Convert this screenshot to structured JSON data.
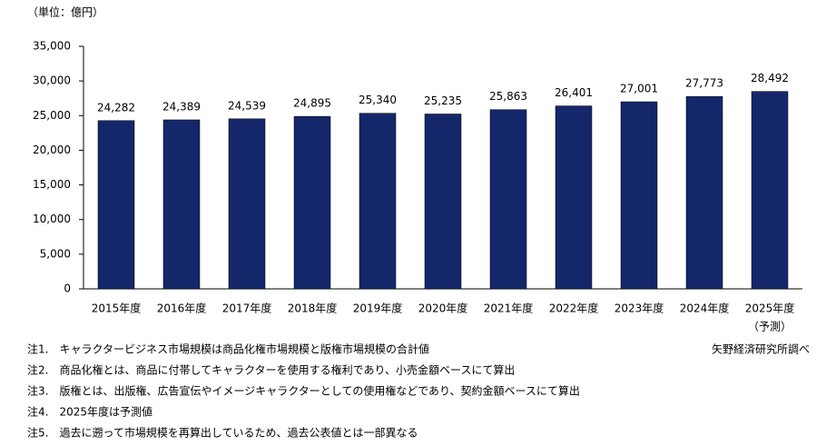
{
  "chart_data": {
    "type": "bar",
    "unit_label": "（単位：億円）",
    "categories": [
      "2015年度",
      "2016年度",
      "2017年度",
      "2018年度",
      "2019年度",
      "2020年度",
      "2021年度",
      "2022年度",
      "2023年度",
      "2024年度",
      "2025年度"
    ],
    "forecast_note": "（予測）",
    "values": [
      24282,
      24389,
      24539,
      24895,
      25340,
      25235,
      25863,
      26401,
      27001,
      27773,
      28492
    ],
    "value_labels": [
      "24,282",
      "24,389",
      "24,539",
      "24,895",
      "25,340",
      "25,235",
      "25,863",
      "26,401",
      "27,001",
      "27,773",
      "28,492"
    ],
    "color": "#15276b",
    "ylim": [
      0,
      35000
    ],
    "yticks": [
      0,
      {
        "value": 5000,
        "label": "5,000"
      },
      {
        "value": 10000,
        "label": "10,000"
      },
      {
        "value": 15000,
        "label": "15,000"
      },
      {
        "value": 20000,
        "label": "20,000"
      },
      {
        "value": 25000,
        "label": "25,000"
      },
      {
        "value": 30000,
        "label": "30,000"
      },
      {
        "value": 35000,
        "label": "35,000"
      }
    ],
    "grid": false,
    "source": "矢野経済研究所調べ",
    "notes": [
      "注1.　キャラクタービジネス市場規模は商品化権市場規模と版権市場規模の合計値",
      "注2.　商品化権とは、商品に付帯してキャラクターを使用する権利であり、小売金額ベースにて算出",
      "注3.　版権とは、出版権、広告宣伝やイメージキャラクターとしての使用権などであり、契約金額ベースにて算出",
      "注4.　2025年度は予測値",
      "注5.　過去に遡って市場規模を再算出しているため、過去公表値とは一部異なる"
    ]
  }
}
